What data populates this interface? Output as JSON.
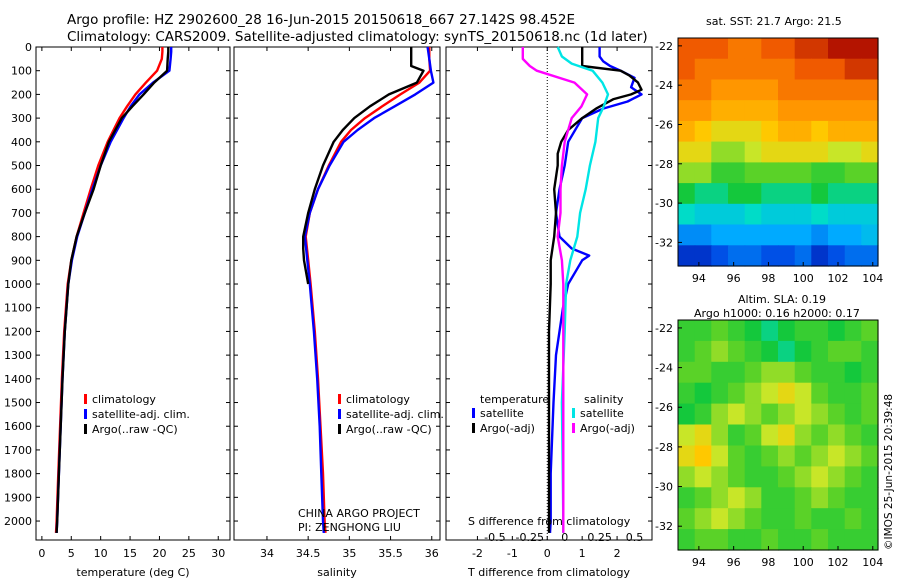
{
  "title_line1": "Argo profile: HZ 2902600_28 16-Jun-2015 20150618_667 27.142S 98.452E",
  "title_line2": "Climatology: CARS2009. Satellite-adjusted climatology: synTS_20150618.nc (1d later)",
  "depth_ticks": [
    0,
    100,
    200,
    300,
    400,
    500,
    600,
    700,
    800,
    900,
    1000,
    1100,
    1200,
    1300,
    1400,
    1500,
    1600,
    1700,
    1800,
    1900,
    2000
  ],
  "colors": {
    "climatology": "#ff0000",
    "satellite": "#0000ff",
    "argo": "#000000",
    "temp_diff_sat": "#0000ff",
    "temp_diff_argo": "#000000",
    "sal_diff_sat": "#00e5e5",
    "sal_diff_argo": "#ff00ff"
  },
  "chart_data": [
    {
      "type": "line",
      "id": "temperature",
      "xlabel": "temperature (deg C)",
      "xlim": [
        -1,
        32
      ],
      "ylim": [
        2080,
        0
      ],
      "xticks": [
        0,
        5,
        10,
        15,
        20,
        25,
        30
      ],
      "legend": [
        "climatology",
        "satellite-adj. clim.",
        "Argo(..raw -QC)"
      ],
      "series": [
        {
          "name": "climatology",
          "depth": [
            0,
            20,
            50,
            100,
            150,
            200,
            250,
            300,
            400,
            500,
            600,
            700,
            800,
            900,
            1000,
            1200,
            1400,
            1600,
            1800,
            2000,
            2050
          ],
          "values": [
            20.5,
            20.5,
            20.4,
            19.6,
            17.7,
            15.9,
            14.5,
            13.2,
            11.2,
            9.6,
            8.3,
            7.1,
            5.9,
            5.0,
            4.4,
            3.8,
            3.4,
            3.1,
            2.8,
            2.5,
            2.4
          ]
        },
        {
          "name": "satellite-adj. clim.",
          "depth": [
            0,
            20,
            50,
            100,
            150,
            200,
            250,
            300,
            400,
            500,
            600,
            700,
            800,
            900,
            1000,
            1200,
            1400,
            1600,
            1800,
            2000,
            2050
          ],
          "values": [
            22.0,
            22.0,
            21.9,
            21.7,
            18.9,
            16.6,
            15.1,
            13.9,
            11.7,
            10.0,
            8.6,
            7.3,
            6.0,
            5.1,
            4.5,
            3.9,
            3.5,
            3.2,
            2.9,
            2.6,
            2.5
          ]
        },
        {
          "name": "Argo(..raw -QC)",
          "depth": [
            0,
            20,
            50,
            100,
            150,
            200,
            250,
            300,
            400,
            500,
            600,
            700,
            800,
            900,
            1000,
            1200,
            1400,
            1600,
            1800,
            2000,
            2050
          ],
          "values": [
            21.5,
            21.5,
            21.4,
            21.3,
            19.1,
            17.3,
            15.4,
            13.6,
            11.4,
            10.0,
            8.8,
            7.3,
            5.9,
            5.0,
            4.5,
            3.9,
            3.5,
            3.2,
            2.9,
            2.6,
            2.5
          ]
        }
      ]
    },
    {
      "type": "line",
      "id": "salinity",
      "xlabel": "salinity",
      "xlim": [
        33.6,
        36.1
      ],
      "ylim": [
        2080,
        0
      ],
      "xticks": [
        34,
        34.5,
        35,
        35.5,
        36
      ],
      "xticklabels": [
        "34",
        "34.5",
        "35",
        "35.5",
        "36"
      ],
      "legend": [
        "climatology",
        "satellite-adj. clim.",
        "Argo(..raw -QC)"
      ],
      "series": [
        {
          "name": "climatology",
          "depth": [
            0,
            50,
            100,
            150,
            200,
            250,
            300,
            350,
            400,
            500,
            600,
            700,
            800,
            900,
            1000,
            1200,
            1400,
            1600,
            1800,
            2000,
            2050
          ],
          "values": [
            35.97,
            35.97,
            35.98,
            35.85,
            35.62,
            35.4,
            35.19,
            35.02,
            34.9,
            34.75,
            34.62,
            34.52,
            34.47,
            34.5,
            34.53,
            34.58,
            34.62,
            34.65,
            34.68,
            34.7,
            34.71
          ]
        },
        {
          "name": "satellite-adj. clim.",
          "depth": [
            0,
            50,
            100,
            150,
            200,
            250,
            300,
            350,
            400,
            500,
            600,
            700,
            800,
            900,
            1000,
            1200,
            1400,
            1600,
            1800,
            2000,
            2050
          ],
          "values": [
            35.95,
            35.97,
            35.99,
            36.02,
            35.8,
            35.55,
            35.3,
            35.1,
            34.93,
            34.76,
            34.62,
            34.52,
            34.46,
            34.49,
            34.52,
            34.57,
            34.61,
            34.64,
            34.66,
            34.68,
            34.69
          ]
        },
        {
          "name": "Argo(..raw -QC)",
          "depth": [
            0,
            50,
            80,
            100,
            150,
            200,
            250,
            300,
            350,
            400,
            500,
            600,
            700,
            800,
            850,
            900,
            1000
          ],
          "values": [
            35.75,
            35.75,
            35.75,
            35.9,
            35.82,
            35.48,
            35.25,
            35.06,
            34.92,
            34.81,
            34.68,
            34.58,
            34.5,
            34.44,
            34.44,
            34.45,
            34.5
          ]
        }
      ],
      "annotations": [
        "CHINA ARGO PROJECT",
        "PI: ZENGHONG LIU"
      ]
    },
    {
      "type": "line",
      "id": "differences",
      "xlabel": "T difference from climatology",
      "top_xlabel": "S difference from climatology",
      "xlim": [
        -2.9,
        3.0
      ],
      "ylim": [
        2080,
        0
      ],
      "xticks": [
        -2,
        -1,
        0,
        1,
        2
      ],
      "xticklabels": [
        "-2",
        "-1",
        "0",
        "1",
        "2"
      ],
      "top_xticks": [
        -0.5,
        -0.25,
        0,
        0.25,
        0.5
      ],
      "top_xticklabels": [
        "-0.5",
        "-0.25",
        "0",
        "0.25",
        "0.5"
      ],
      "zero_line": true,
      "legend_headers": [
        "temperature",
        "salinity"
      ],
      "legend": [
        "satellite",
        "Argo(-adj)",
        "satellite",
        "Argo(-adj)"
      ],
      "series": [
        {
          "name": "satellite",
          "variable": "temperature",
          "depth": [
            0,
            40,
            60,
            80,
            100,
            130,
            170,
            200,
            230,
            260,
            300,
            400,
            500,
            600,
            700,
            800,
            850,
            880,
            900,
            950,
            1000,
            1100,
            1200,
            1300,
            1500,
            1800,
            2000,
            2050
          ],
          "values": [
            1.5,
            1.5,
            1.6,
            1.8,
            2.1,
            2.5,
            2.4,
            2.7,
            2.3,
            1.6,
            1.0,
            0.6,
            0.5,
            0.35,
            0.25,
            0.35,
            0.7,
            1.2,
            1.0,
            0.8,
            0.6,
            0.45,
            0.35,
            0.25,
            0.18,
            0.1,
            0.1,
            0.08
          ]
        },
        {
          "name": "Argo(-adj)",
          "variable": "temperature",
          "depth": [
            0,
            80,
            100,
            120,
            150,
            180,
            200,
            220,
            260,
            300,
            350,
            400,
            450,
            500,
            600,
            700,
            800,
            900,
            1000,
            1200,
            1500,
            2000,
            2050
          ],
          "values": [
            1.0,
            1.0,
            2.1,
            2.35,
            2.6,
            2.7,
            2.4,
            1.9,
            1.4,
            1.0,
            0.6,
            0.4,
            0.3,
            0.3,
            0.2,
            0.25,
            0.2,
            0.1,
            0.1,
            0.05,
            0.05,
            0.05,
            0.05
          ]
        },
        {
          "name": "satellite",
          "variable": "salinity",
          "depth": [
            0,
            40,
            70,
            100,
            150,
            200,
            250,
            300,
            400,
            500,
            600,
            700,
            800,
            900,
            1000,
            1200,
            1500,
            2000,
            2050
          ],
          "values": [
            -0.05,
            -0.02,
            0.05,
            0.2,
            0.27,
            0.31,
            0.28,
            0.24,
            0.22,
            0.18,
            0.15,
            0.11,
            0.09,
            0.04,
            0.01,
            0.0,
            -0.02,
            -0.01,
            -0.01
          ]
        },
        {
          "name": "Argo(-adj)",
          "variable": "salinity",
          "depth": [
            0,
            50,
            80,
            100,
            150,
            200,
            250,
            300,
            400,
            500,
            600,
            700,
            800,
            900,
            1000,
            1200,
            1500,
            2000,
            2050
          ],
          "values": [
            -0.3,
            -0.3,
            -0.25,
            -0.2,
            0.07,
            0.16,
            0.12,
            0.05,
            0.0,
            -0.02,
            -0.03,
            -0.03,
            -0.05,
            -0.02,
            -0.01,
            -0.01,
            -0.01,
            -0.01,
            -0.01
          ]
        }
      ]
    },
    {
      "type": "heatmap",
      "id": "sst_map",
      "title": "sat. SST: 21.7 Argo: 21.5",
      "xticks": [
        94,
        96,
        98,
        100,
        102,
        104
      ],
      "yticks": [
        -22,
        -24,
        -26,
        -28,
        -30,
        -32
      ],
      "xlim": [
        92.8,
        104.3
      ],
      "ylim": [
        -33.2,
        -21.6
      ],
      "values": [
        [
          21,
          21,
          21,
          20,
          20,
          21,
          21,
          22,
          22,
          23,
          23,
          23
        ],
        [
          21,
          20,
          20,
          20,
          20,
          20,
          20,
          21,
          21,
          21,
          22,
          22
        ],
        [
          20,
          20,
          19,
          19,
          19,
          19,
          20,
          20,
          20,
          20,
          20,
          20
        ],
        [
          19,
          19,
          18,
          18,
          18,
          18,
          19,
          19,
          19,
          19,
          19,
          19
        ],
        [
          18,
          17,
          16,
          16,
          16,
          17,
          18,
          18,
          17,
          18,
          18,
          18
        ],
        [
          16,
          16,
          14,
          14,
          15,
          16,
          16,
          16,
          16,
          15,
          15,
          16
        ],
        [
          14,
          14,
          12,
          12,
          13,
          13,
          13,
          13,
          12,
          12,
          13,
          13
        ],
        [
          11,
          10,
          10,
          11,
          11,
          10,
          10,
          10,
          11,
          10,
          10,
          10
        ],
        [
          9,
          8,
          8,
          8,
          9,
          8,
          8,
          8,
          9,
          8,
          8,
          8
        ],
        [
          5,
          5,
          6,
          6,
          6,
          6,
          6,
          6,
          5,
          6,
          6,
          7
        ],
        [
          2,
          2,
          3,
          4,
          4,
          3,
          3,
          4,
          2,
          3,
          4,
          4
        ]
      ]
    },
    {
      "type": "heatmap",
      "id": "sla_map",
      "title": "Altim. SLA: 0.19",
      "subtitle": "Argo h1000: 0.16 h2000: 0.17",
      "xticks": [
        94,
        96,
        98,
        100,
        102,
        104
      ],
      "yticks": [
        -22,
        -24,
        -26,
        -28,
        -30,
        -32
      ],
      "xlim": [
        92.8,
        104.3
      ],
      "ylim": [
        -33.2,
        -21.6
      ],
      "values": [
        [
          12,
          12,
          13,
          12,
          11,
          10,
          11,
          12,
          12,
          11,
          12,
          13
        ],
        [
          12,
          13,
          14,
          13,
          12,
          11,
          10,
          11,
          12,
          13,
          13,
          12
        ],
        [
          13,
          13,
          12,
          12,
          13,
          14,
          14,
          13,
          12,
          12,
          11,
          12
        ],
        [
          12,
          11,
          12,
          13,
          14,
          15,
          16,
          15,
          13,
          12,
          12,
          13
        ],
        [
          11,
          12,
          14,
          15,
          14,
          13,
          14,
          15,
          14,
          13,
          12,
          13
        ],
        [
          15,
          16,
          14,
          12,
          13,
          15,
          16,
          14,
          13,
          14,
          13,
          12
        ],
        [
          16,
          17,
          15,
          13,
          12,
          13,
          14,
          13,
          14,
          15,
          14,
          13
        ],
        [
          14,
          15,
          14,
          13,
          12,
          12,
          13,
          14,
          15,
          14,
          13,
          12
        ],
        [
          12,
          13,
          14,
          15,
          14,
          12,
          12,
          13,
          14,
          13,
          12,
          12
        ],
        [
          13,
          14,
          15,
          14,
          13,
          12,
          12,
          13,
          12,
          12,
          13,
          12
        ],
        [
          12,
          13,
          13,
          12,
          12,
          13,
          12,
          12,
          13,
          12,
          12,
          12
        ]
      ]
    }
  ],
  "stamp": "©IMOS 25-Jun-2015 20:39:48"
}
